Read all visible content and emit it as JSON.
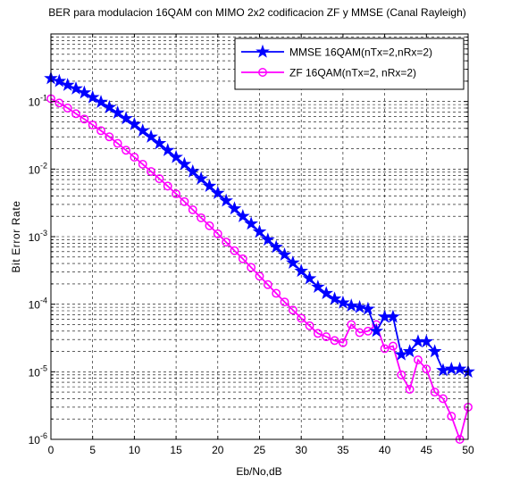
{
  "chart_data": {
    "type": "line",
    "title": "BER para modulacion 16QAM con MIMO 2x2 codificacion ZF y MMSE (Canal Rayleigh)",
    "xlabel": "Eb/No,dB",
    "ylabel": "Bit Error Rate",
    "xlim": [
      0,
      50
    ],
    "ylim": [
      1e-06,
      1
    ],
    "yscale": "log",
    "grid": true,
    "legend_position": "top-right",
    "x_ticks": [
      0,
      5,
      10,
      15,
      20,
      25,
      30,
      35,
      40,
      45,
      50
    ],
    "y_ticks": [
      {
        "exp": "-6",
        "value": 1e-06
      },
      {
        "exp": "-5",
        "value": 1e-05
      },
      {
        "exp": "-4",
        "value": 0.0001
      },
      {
        "exp": "-3",
        "value": 0.001
      },
      {
        "exp": "-2",
        "value": 0.01
      },
      {
        "exp": "-1",
        "value": 0.1
      }
    ],
    "y_tick_base": "10",
    "x": [
      0,
      1,
      2,
      3,
      4,
      5,
      6,
      7,
      8,
      9,
      10,
      11,
      12,
      13,
      14,
      15,
      16,
      17,
      18,
      19,
      20,
      21,
      22,
      23,
      24,
      25,
      26,
      27,
      28,
      29,
      30,
      31,
      32,
      33,
      34,
      35,
      36,
      37,
      38,
      39,
      40,
      41,
      42,
      43,
      44,
      45,
      46,
      47,
      48,
      49,
      50
    ],
    "series": [
      {
        "name": "MMSE 16QAM(nTx=2,nRx=2)",
        "color": "#0000ff",
        "marker": "star",
        "values": [
          0.22,
          0.2,
          0.175,
          0.155,
          0.135,
          0.115,
          0.098,
          0.082,
          0.068,
          0.056,
          0.046,
          0.037,
          0.03,
          0.024,
          0.019,
          0.015,
          0.0118,
          0.0092,
          0.0072,
          0.0056,
          0.0044,
          0.0034,
          0.0026,
          0.002,
          0.00155,
          0.00118,
          0.0009,
          0.0007,
          0.00054,
          0.00041,
          0.00031,
          0.00024,
          0.00018,
          0.000145,
          0.00012,
          0.000105,
          9.5e-05,
          9e-05,
          8.5e-05,
          4e-05,
          6.5e-05,
          6.5e-05,
          1.8e-05,
          2e-05,
          2.8e-05,
          2.8e-05,
          2e-05,
          1.05e-05,
          1.1e-05,
          1.1e-05,
          1e-05
        ]
      },
      {
        "name": "ZF 16QAM(nTx=2, nRx=2)",
        "color": "#ff00ff",
        "marker": "circle",
        "values": [
          0.11,
          0.095,
          0.08,
          0.066,
          0.055,
          0.045,
          0.037,
          0.03,
          0.024,
          0.019,
          0.015,
          0.0118,
          0.0092,
          0.0072,
          0.0056,
          0.0043,
          0.0033,
          0.0025,
          0.0019,
          0.00145,
          0.0011,
          0.00083,
          0.00062,
          0.00047,
          0.00035,
          0.00026,
          0.000195,
          0.000145,
          0.000108,
          8.2e-05,
          6.2e-05,
          4.8e-05,
          3.7e-05,
          3.3e-05,
          2.9e-05,
          2.7e-05,
          5e-05,
          3.8e-05,
          4e-05,
          5e-05,
          2.2e-05,
          2.4e-05,
          9e-06,
          5.5e-06,
          1.5e-05,
          1.1e-05,
          5e-06,
          4e-06,
          2.2e-06,
          1e-06,
          3e-06
        ]
      }
    ]
  }
}
